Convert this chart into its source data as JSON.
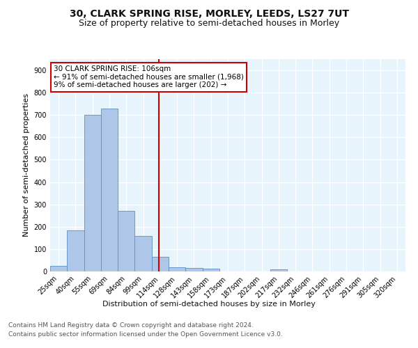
{
  "title1": "30, CLARK SPRING RISE, MORLEY, LEEDS, LS27 7UT",
  "title2": "Size of property relative to semi-detached houses in Morley",
  "xlabel": "Distribution of semi-detached houses by size in Morley",
  "ylabel": "Number of semi-detached properties",
  "footer1": "Contains HM Land Registry data © Crown copyright and database right 2024.",
  "footer2": "Contains public sector information licensed under the Open Government Licence v3.0.",
  "categories": [
    "25sqm",
    "40sqm",
    "55sqm",
    "69sqm",
    "84sqm",
    "99sqm",
    "114sqm",
    "128sqm",
    "143sqm",
    "158sqm",
    "173sqm",
    "187sqm",
    "202sqm",
    "217sqm",
    "232sqm",
    "246sqm",
    "261sqm",
    "276sqm",
    "291sqm",
    "305sqm",
    "320sqm"
  ],
  "values": [
    25,
    185,
    700,
    730,
    270,
    160,
    65,
    20,
    15,
    12,
    0,
    0,
    0,
    8,
    0,
    0,
    0,
    0,
    0,
    0,
    0
  ],
  "bar_color": "#aec6e8",
  "bar_edge_color": "#5a8fc2",
  "property_line_x": 5.93,
  "property_line_color": "#cc0000",
  "annotation_text": "30 CLARK SPRING RISE: 106sqm\n← 91% of semi-detached houses are smaller (1,968)\n9% of semi-detached houses are larger (202) →",
  "annotation_box_color": "#cc0000",
  "ylim": [
    0,
    950
  ],
  "yticks": [
    0,
    100,
    200,
    300,
    400,
    500,
    600,
    700,
    800,
    900
  ],
  "plot_bg_color": "#e8f4fc",
  "grid_color": "#ffffff",
  "title1_fontsize": 10,
  "title2_fontsize": 9,
  "axis_label_fontsize": 8,
  "tick_fontsize": 7,
  "annotation_fontsize": 7.5,
  "footer_fontsize": 6.5
}
